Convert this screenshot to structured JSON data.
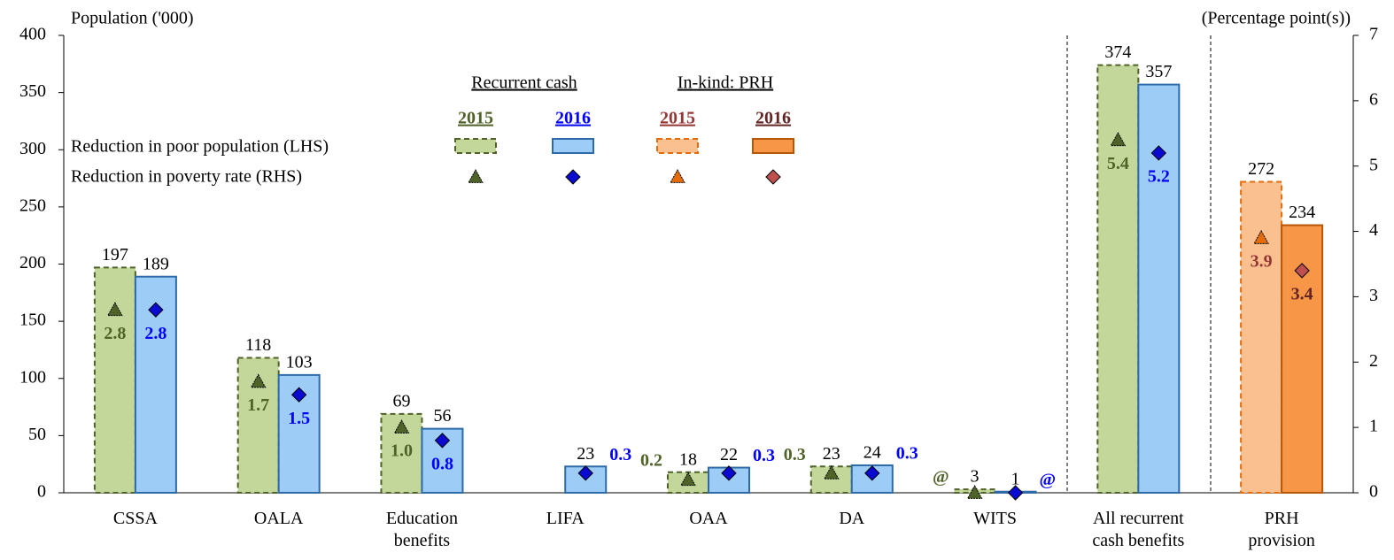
{
  "chart_data": {
    "type": "bar",
    "y_label": "Population ('000)",
    "y2_label": "(Percentage point(s))",
    "categories": [
      "CSSA",
      "OALA",
      "Education\nbenefits",
      "LIFA",
      "OAA",
      "DA",
      "WITS",
      "All recurrent\ncash benefits",
      "PRH\nprovision"
    ],
    "ylim": [
      0,
      400
    ],
    "yticks": [
      0,
      50,
      100,
      150,
      200,
      250,
      300,
      350,
      400
    ],
    "y2lim": [
      0,
      7
    ],
    "y2ticks": [
      0,
      1,
      2,
      3,
      4,
      5,
      6,
      7
    ],
    "legend_groups": [
      "Recurrent cash",
      "In-kind: PRH"
    ],
    "legend_rows": [
      "Reduction in poor population (LHS)",
      "Reduction in poverty rate (RHS)"
    ],
    "series": [
      {
        "name": "2015",
        "color": "#c4d79b",
        "edge_color": "#4f6228",
        "dashed": true,
        "values": [
          197,
          118,
          69,
          null,
          18,
          23,
          3,
          374,
          null
        ]
      },
      {
        "name": "2016",
        "color": "#9dcdf7",
        "edge_color": "#2e6aa8",
        "dashed": false,
        "values": [
          189,
          103,
          56,
          23,
          22,
          24,
          1,
          357,
          null
        ]
      },
      {
        "name": "2015",
        "color": "#fac090",
        "edge_color": "#e46c0a",
        "dashed": true,
        "values": [
          null,
          null,
          null,
          null,
          null,
          null,
          null,
          null,
          272
        ]
      },
      {
        "name": "2016",
        "color": "#f79646",
        "edge_color": "#b65708",
        "dashed": false,
        "values": [
          null,
          null,
          null,
          null,
          null,
          null,
          null,
          null,
          234
        ]
      },
      {
        "axis": "y2",
        "marker": "triangle",
        "color": "#4f6228",
        "label_color": "#4f6228",
        "values": [
          2.8,
          1.7,
          1,
          null,
          0.2,
          0.3,
          0,
          5.4,
          null
        ],
        "value_labels": [
          "2.8",
          "1.7",
          "1.0",
          null,
          "0.2",
          "0.3",
          "@",
          "5.4",
          null
        ]
      },
      {
        "axis": "y2",
        "marker": "diamond",
        "color": "#0a0ad0",
        "label_color": "#0000ff",
        "values": [
          2.8,
          1.5,
          0.8,
          0.3,
          0.3,
          0.3,
          0,
          5.2,
          null
        ],
        "value_labels": [
          "2.8",
          "1.5",
          "0.8",
          "0.3",
          "0.3",
          "0.3",
          "@",
          "5.2",
          null
        ]
      },
      {
        "axis": "y2",
        "marker": "triangle",
        "color": "#e46c0a",
        "label_color": "#953735",
        "values": [
          null,
          null,
          null,
          null,
          null,
          null,
          null,
          null,
          3.9
        ],
        "value_labels": [
          null,
          null,
          null,
          null,
          null,
          null,
          null,
          null,
          "3.9"
        ]
      },
      {
        "axis": "y2",
        "marker": "diamond",
        "color": "#c0504d",
        "label_color": "#632523",
        "values": [
          null,
          null,
          null,
          null,
          null,
          null,
          null,
          null,
          3.4
        ],
        "value_labels": [
          null,
          null,
          null,
          null,
          null,
          null,
          null,
          null,
          "3.4"
        ]
      }
    ]
  }
}
